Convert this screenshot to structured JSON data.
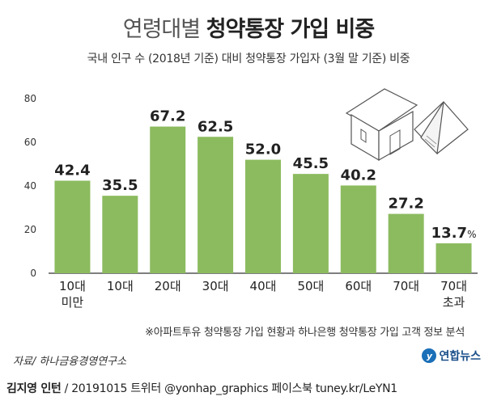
{
  "title_light": "연령대별 ",
  "title_bold": "청약통장 가입 비중",
  "subtitle": "국내 인구 수 (2018년 기준) 대비 청약통장 가입자 (3월 말 기준) 비중",
  "footnote": "※아파트투유 청약통장 가입 현황과 하나은행 청약통장 가입 고객 정보 분석",
  "source": "자료/ 하나금융경영연구소",
  "logo_text": "연합뉴스",
  "credit_name": "김지영 인턴",
  "credit_rest": " / 20191015  트위터 @yonhap_graphics  페이스북 tuney.kr/LeYN1",
  "colors": {
    "bar": "#8cbb5f",
    "axis": "#333333",
    "text": "#222222"
  },
  "chart_data": {
    "type": "bar",
    "categories": [
      [
        "10대",
        "미만"
      ],
      [
        "10대"
      ],
      [
        "20대"
      ],
      [
        "30대"
      ],
      [
        "40대"
      ],
      [
        "50대"
      ],
      [
        "60대"
      ],
      [
        "70대"
      ],
      [
        "70대",
        "초과"
      ]
    ],
    "values": [
      42.4,
      35.5,
      67.2,
      62.5,
      52.0,
      45.5,
      40.2,
      27.2,
      13.7
    ],
    "value_labels": [
      "42.4",
      "35.5",
      "67.2",
      "62.5",
      "52.0",
      "45.5",
      "40.2",
      "27.2",
      "13.7"
    ],
    "last_label_unit": "%",
    "yticks": [
      "0",
      "20",
      "40",
      "60",
      "80"
    ],
    "ylim": [
      0,
      80
    ],
    "grid": false
  }
}
